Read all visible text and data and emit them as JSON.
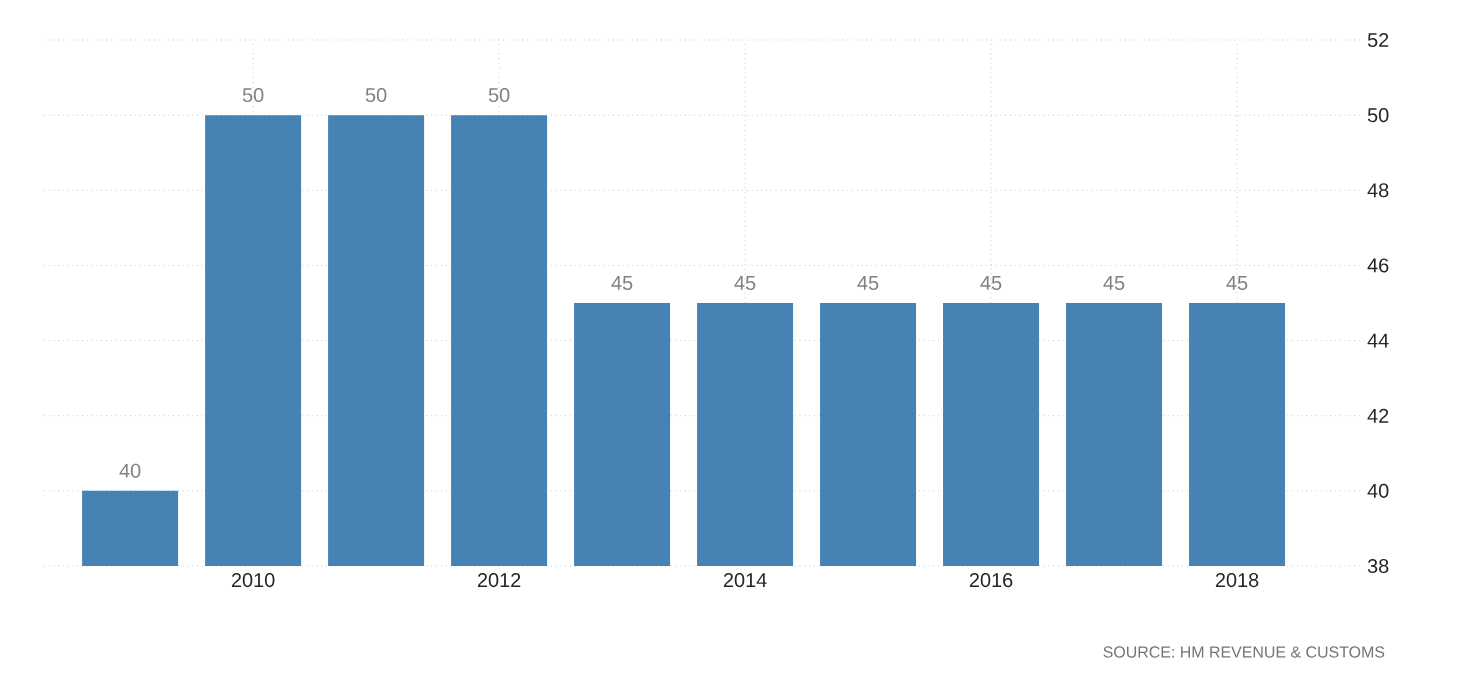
{
  "chart_data": {
    "type": "bar",
    "categories": [
      null,
      "2010",
      null,
      "2012",
      null,
      "2014",
      null,
      "2016",
      null,
      "2018"
    ],
    "values": [
      40,
      50,
      50,
      50,
      45,
      45,
      45,
      45,
      45,
      45
    ],
    "color": "#4682b4",
    "ylim": [
      38,
      52
    ],
    "yticks": [
      38,
      40,
      42,
      44,
      46,
      48,
      50,
      52
    ],
    "grid": true,
    "data_labels": true,
    "annotations": [
      "SOURCE: HM REVENUE & CUSTOMS"
    ]
  }
}
